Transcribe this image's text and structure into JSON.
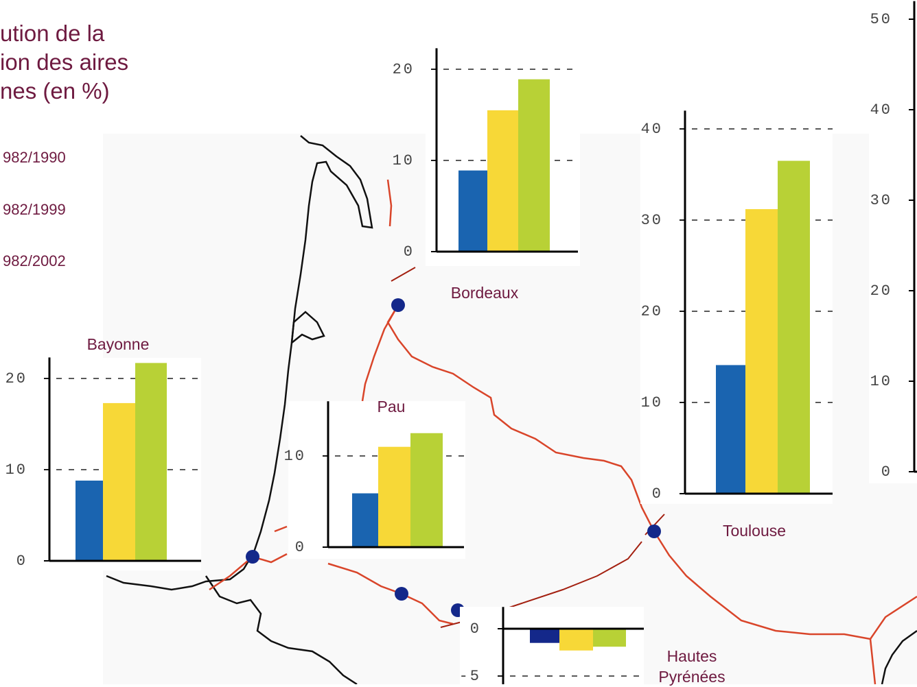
{
  "title_lines": [
    "ution de la",
    "ion des  aires",
    "nes (en %)"
  ],
  "legend": [
    {
      "label": "982/1990",
      "color": "#1a64b0"
    },
    {
      "label": "982/1999",
      "color": "#f7d837"
    },
    {
      "label": "982/2002",
      "color": "#b8d136"
    }
  ],
  "chart_data": [
    {
      "type": "bar",
      "title": "Bordeaux",
      "values": [
        8.9,
        15.5,
        18.9
      ],
      "colors": [
        "#1a64b0",
        "#f7d837",
        "#b8d136"
      ],
      "ylim": [
        0,
        22.3
      ],
      "yticks": [
        0,
        10,
        20
      ],
      "grid": true
    },
    {
      "type": "bar",
      "title": "Toulouse",
      "values": [
        14.1,
        31.2,
        36.5
      ],
      "colors": [
        "#1a64b0",
        "#f7d837",
        "#b8d136"
      ],
      "ylim": [
        0,
        42
      ],
      "yticks": [
        0,
        10,
        20,
        30,
        40
      ],
      "grid": true
    },
    {
      "type": "bar",
      "title": "Bayonne",
      "values": [
        8.8,
        17.3,
        21.7
      ],
      "colors": [
        "#1a64b0",
        "#f7d837",
        "#b8d136"
      ],
      "ylim": [
        0,
        22.3
      ],
      "yticks": [
        0,
        10,
        20
      ],
      "grid": true
    },
    {
      "type": "bar",
      "title": "Pau",
      "values": [
        5.9,
        11,
        12.5
      ],
      "colors": [
        "#1a64b0",
        "#f7d837",
        "#b8d136"
      ],
      "ylim": [
        0,
        16
      ],
      "yticks": [
        0,
        10
      ],
      "grid": true
    },
    {
      "type": "bar",
      "title": "Hautes Pyrénées",
      "values": [
        -1.5,
        -2.3,
        -1.9
      ],
      "colors": [
        "#14288a",
        "#f7d837",
        "#b8d136"
      ],
      "ylim": [
        -6,
        2.3
      ],
      "yticks": [
        -5,
        0
      ],
      "grid": true
    },
    {
      "type": "bar",
      "ylim": [
        0,
        52
      ],
      "yticks": [
        0,
        10,
        20,
        30,
        40,
        50
      ],
      "grid": false
    }
  ]
}
